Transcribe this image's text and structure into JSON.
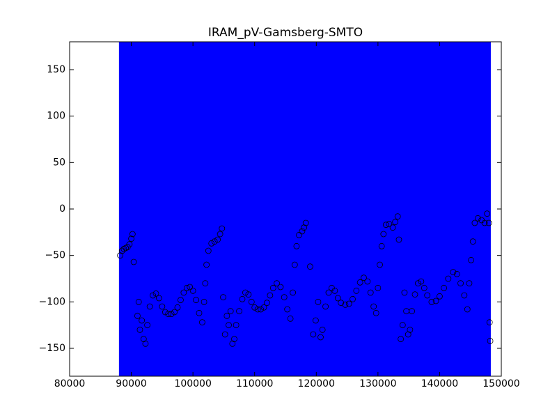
{
  "chart_data": {
    "type": "scatter",
    "title": "IRAM_pV-Gamsberg-SMTO",
    "x": [
      88200,
      88500,
      88800,
      89100,
      89400,
      89700,
      90000,
      90200,
      90400,
      91000,
      91200,
      91400,
      91700,
      92000,
      92300,
      92600,
      93000,
      93500,
      94000,
      94500,
      95000,
      95500,
      96000,
      96500,
      97000,
      97500,
      98000,
      98500,
      99000,
      99500,
      100000,
      100500,
      101000,
      101500,
      101800,
      102000,
      102200,
      102500,
      103000,
      103500,
      104000,
      104400,
      104700,
      104900,
      105200,
      105500,
      105800,
      106100,
      106400,
      106700,
      107000,
      107500,
      108000,
      108500,
      109000,
      109500,
      110000,
      110500,
      111000,
      111500,
      112000,
      112500,
      113000,
      113600,
      114200,
      114800,
      115300,
      115800,
      116200,
      116500,
      116800,
      117200,
      117700,
      118000,
      118300,
      119000,
      119500,
      119900,
      120300,
      120700,
      121000,
      121500,
      122000,
      122500,
      123000,
      123500,
      124000,
      124700,
      125300,
      125900,
      126500,
      127100,
      127700,
      128300,
      128800,
      129300,
      129700,
      130000,
      130300,
      130600,
      130900,
      131300,
      131800,
      132400,
      132800,
      133200,
      133400,
      133700,
      134000,
      134300,
      134600,
      134900,
      135200,
      135500,
      136000,
      136500,
      137000,
      137500,
      138000,
      138700,
      139400,
      140000,
      140700,
      141400,
      142200,
      142800,
      143400,
      144000,
      144500,
      144800,
      145100,
      145400,
      145700,
      146200,
      146800,
      147300,
      147700,
      148000,
      148100,
      148200
    ],
    "values": [
      -50,
      -45,
      -43,
      -42,
      -41,
      -38,
      -32,
      -27,
      -57,
      -115,
      -100,
      -130,
      -120,
      -140,
      -145,
      -125,
      -105,
      -93,
      -91,
      -96,
      -105,
      -111,
      -113,
      -113,
      -111,
      -106,
      -98,
      -90,
      -85,
      -84,
      -88,
      -98,
      -112,
      -122,
      -100,
      -80,
      -60,
      -45,
      -37,
      -35,
      -33,
      -27,
      -21,
      -95,
      -135,
      -115,
      -125,
      -110,
      -145,
      -140,
      -125,
      -110,
      -97,
      -90,
      -92,
      -100,
      -106,
      -108,
      -108,
      -106,
      -101,
      -93,
      -85,
      -80,
      -84,
      -95,
      -108,
      -118,
      -90,
      -60,
      -40,
      -28,
      -24,
      -20,
      -15,
      -62,
      -135,
      -120,
      -100,
      -138,
      -130,
      -105,
      -90,
      -85,
      -88,
      -96,
      -101,
      -103,
      -102,
      -97,
      -88,
      -79,
      -74,
      -78,
      -90,
      -105,
      -112,
      -85,
      -60,
      -40,
      -27,
      -17,
      -16,
      -20,
      -14,
      -8,
      -33,
      -140,
      -125,
      -90,
      -110,
      -135,
      -130,
      -110,
      -92,
      -80,
      -78,
      -85,
      -93,
      -100,
      -99,
      -94,
      -85,
      -75,
      -68,
      -70,
      -80,
      -93,
      -108,
      -80,
      -55,
      -35,
      -15,
      -10,
      -12,
      -15,
      -5,
      -15,
      -122,
      -142
    ],
    "marker_color": "#000000",
    "span": {
      "x": [
        88000,
        148300
      ],
      "color": "#0000ff"
    },
    "xlim": [
      80000,
      150000
    ],
    "ylim": [
      -180,
      180
    ],
    "xticks": [
      80000,
      90000,
      100000,
      110000,
      120000,
      130000,
      140000,
      150000
    ],
    "yticks": [
      {
        "value": -150,
        "label": "−150"
      },
      {
        "value": -100,
        "label": "−100"
      },
      {
        "value": -50,
        "label": "−50"
      },
      0,
      50,
      100,
      150
    ]
  }
}
